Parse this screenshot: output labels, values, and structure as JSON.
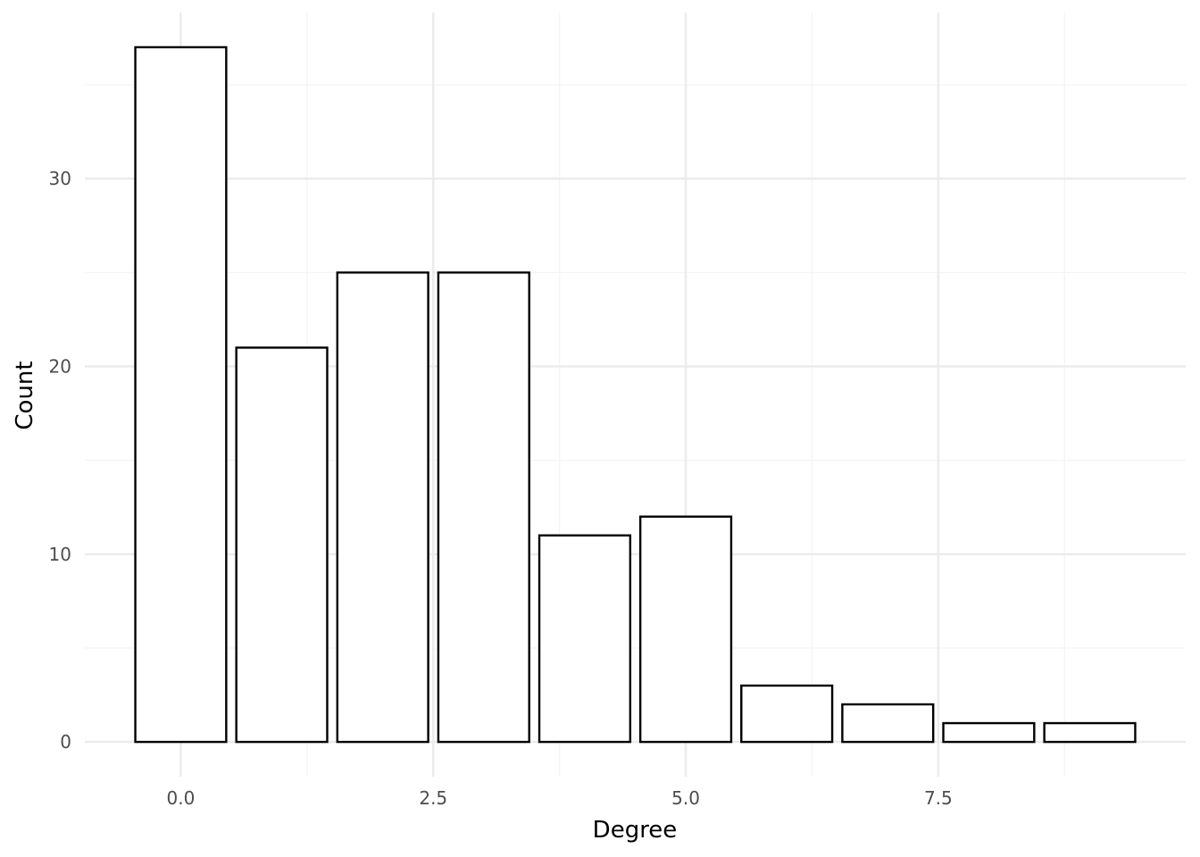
{
  "chart_data": {
    "type": "bar",
    "x": [
      0,
      1,
      2,
      3,
      4,
      5,
      6,
      7,
      8,
      9
    ],
    "values": [
      37,
      21,
      25,
      25,
      11,
      12,
      3,
      2,
      1,
      1
    ],
    "xlabel": "Degree",
    "ylabel": "Count",
    "xlim": [
      -0.95,
      9.95
    ],
    "ylim": [
      -1.85,
      38.85
    ],
    "x_ticks": [
      0,
      2.5,
      5,
      7.5
    ],
    "x_tick_labels": [
      "0.0",
      "2.5",
      "5.0",
      "7.5"
    ],
    "x_minor_ticks": [
      1.25,
      3.75,
      6.25,
      8.75
    ],
    "y_ticks": [
      0,
      10,
      20,
      30
    ],
    "y_tick_labels": [
      "0",
      "10",
      "20",
      "30"
    ],
    "y_minor_ticks": [
      5,
      15,
      25,
      35
    ],
    "grid": true,
    "legend": "none",
    "colors": {
      "bar_fill": "#ffffff",
      "bar_stroke": "#000000",
      "grid_major": "#ebebeb",
      "grid_minor": "#f3f3f3",
      "tick_text": "#4d4d4d",
      "title_text": "#000000"
    }
  }
}
